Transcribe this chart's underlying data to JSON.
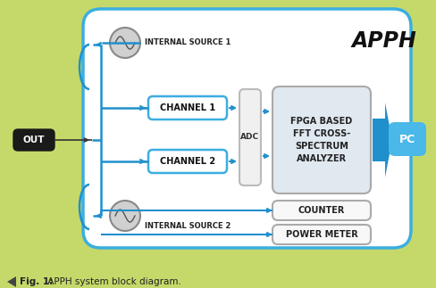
{
  "bg_color": "#c5d96a",
  "main_box_bg": "#ffffff",
  "main_box_edge": "#3baee0",
  "channel_box_bg": "#ffffff",
  "channel_box_edge": "#3baee0",
  "adc_box_bg": "#f0f0f0",
  "fpga_box_bg": "#e0e8f0",
  "fpga_box_edge": "#aaaaaa",
  "small_box_bg": "#f8f8f8",
  "small_box_edge": "#aaaaaa",
  "pc_box_bg": "#4ab8e8",
  "out_box_bg": "#1a1a1a",
  "arrow_color": "#2090cc",
  "out_arrow_color": "#333333",
  "title": "APPH",
  "caption_bold": "Fig. 1:",
  "caption_rest": " APPH system block diagram.",
  "source1_label": "INTERNAL SOURCE 1",
  "source2_label": "INTERNAL SOURCE 2",
  "ch1_label": "CHANNEL 1",
  "ch2_label": "CHANNEL 2",
  "adc_label": "ADC",
  "fpga_label": "FPGA BASED\nFFT CROSS-\nSPECTRUM\nANALYZER",
  "counter_label": "COUNTER",
  "power_label": "POWER METER",
  "pc_label": "PC",
  "out_label": "OUT",
  "fig_w": 4.88,
  "fig_h": 3.23,
  "dpi": 100
}
